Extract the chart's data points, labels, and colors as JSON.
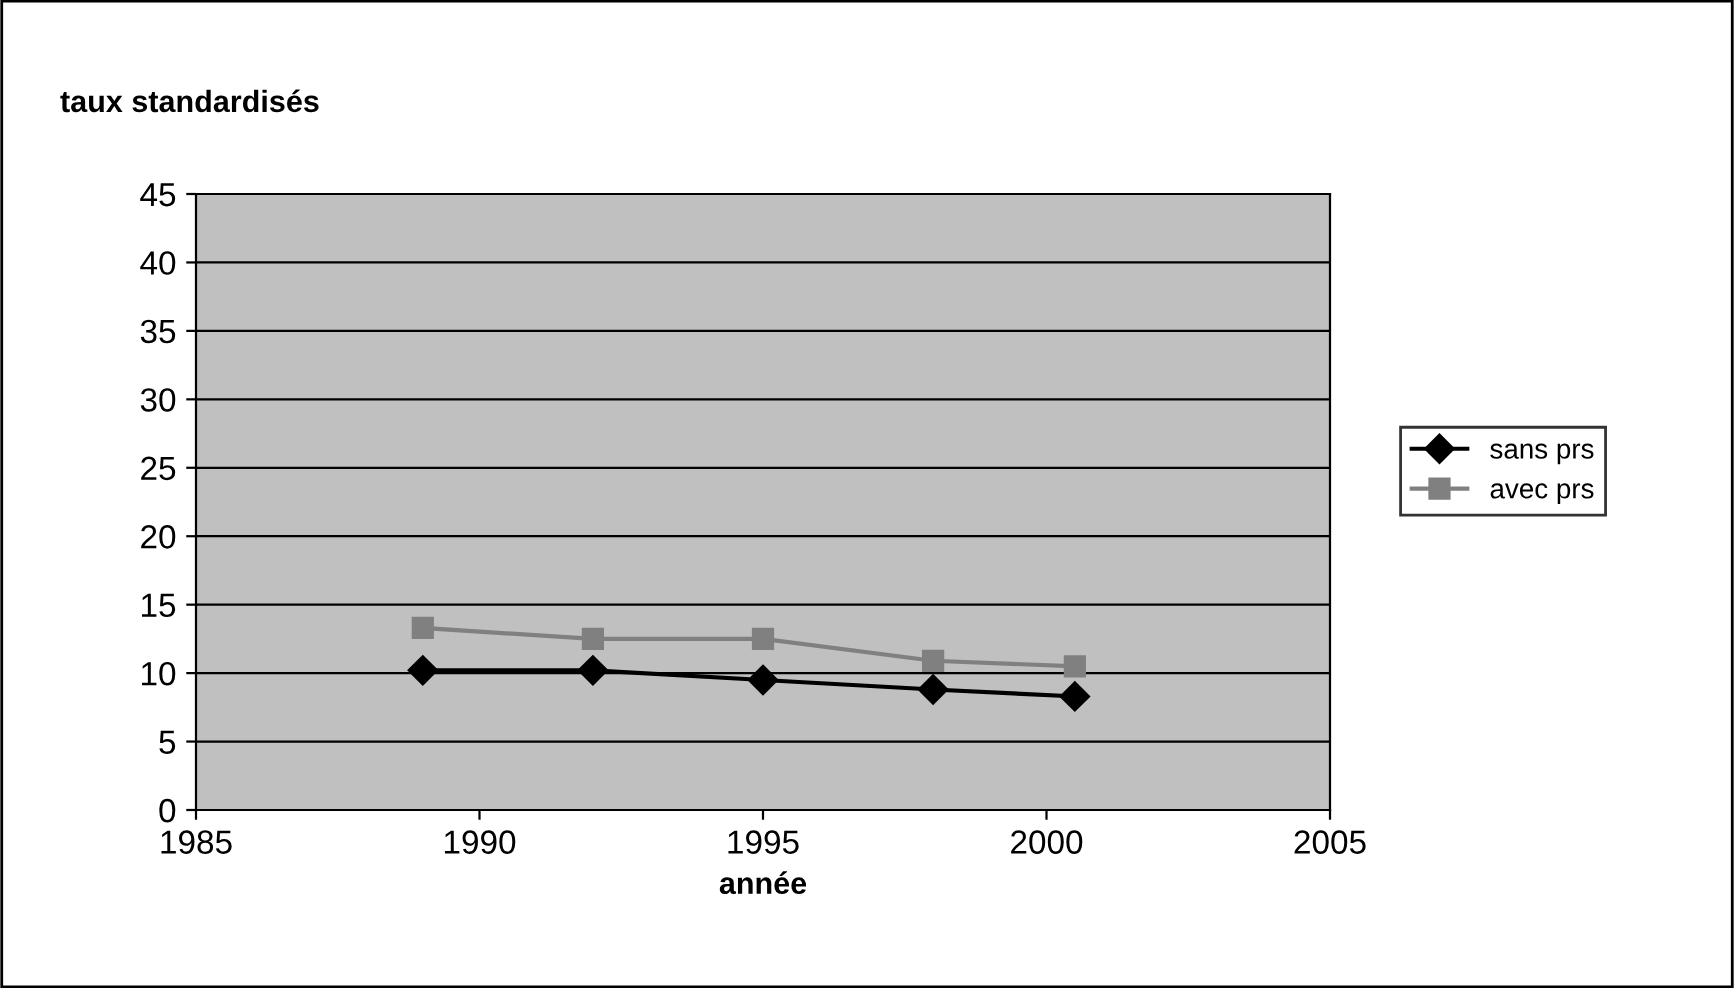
{
  "chart_data": {
    "type": "line",
    "title": "taux standardisés",
    "xlabel": "année",
    "x": [
      1989,
      1992,
      1995,
      1998,
      2000.5
    ],
    "series": [
      {
        "name": "sans prs",
        "color": "#000000",
        "values": [
          10.2,
          10.2,
          9.5,
          8.8,
          8.3
        ],
        "marker": "diamond"
      },
      {
        "name": "avec prs",
        "color": "#808080",
        "values": [
          13.3,
          12.5,
          12.5,
          10.9,
          10.5
        ],
        "marker": "square"
      }
    ],
    "xlim": [
      1985,
      2005
    ],
    "xticks": [
      1985,
      1990,
      1995,
      2000,
      2005
    ],
    "ylim": [
      0,
      45
    ],
    "yticks": [
      0,
      5,
      10,
      15,
      20,
      25,
      30,
      35,
      40,
      45
    ],
    "grid": "y",
    "legend": "right",
    "line_style": "solid"
  }
}
